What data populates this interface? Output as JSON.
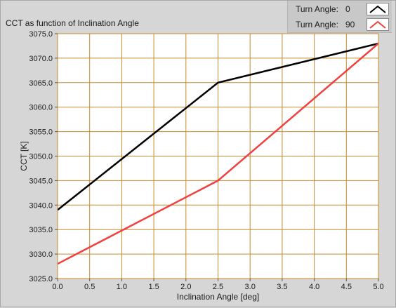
{
  "chart_data": {
    "type": "line",
    "title": "CCT as function of Inclination Angle",
    "xlabel": "Inclination Angle [deg]",
    "ylabel": "CCT [K]",
    "xlim": [
      0.0,
      5.0
    ],
    "ylim": [
      3025.0,
      3075.0
    ],
    "x_ticks": [
      "0.0",
      "0.5",
      "1.0",
      "1.5",
      "2.0",
      "2.5",
      "3.0",
      "3.5",
      "4.0",
      "4.5",
      "5.0"
    ],
    "y_ticks": [
      "3025.0",
      "3030.0",
      "3035.0",
      "3040.0",
      "3045.0",
      "3050.0",
      "3055.0",
      "3060.0",
      "3065.0",
      "3070.0",
      "3075.0"
    ],
    "grid": true,
    "legend_position": "top-right",
    "series": [
      {
        "name": "Turn Angle:",
        "legend_value": "0",
        "color": "#000000",
        "x": [
          0.0,
          2.5,
          5.0
        ],
        "y": [
          3039.0,
          3065.0,
          3073.0
        ]
      },
      {
        "name": "Turn Angle:",
        "legend_value": "90",
        "color": "#f04040",
        "x": [
          0.0,
          2.5,
          5.0
        ],
        "y": [
          3028.0,
          3045.0,
          3073.0
        ]
      }
    ],
    "colors": {
      "plot_background": "#ffffff",
      "grid": "#c88a2e",
      "frame": "#c88a2e"
    }
  }
}
